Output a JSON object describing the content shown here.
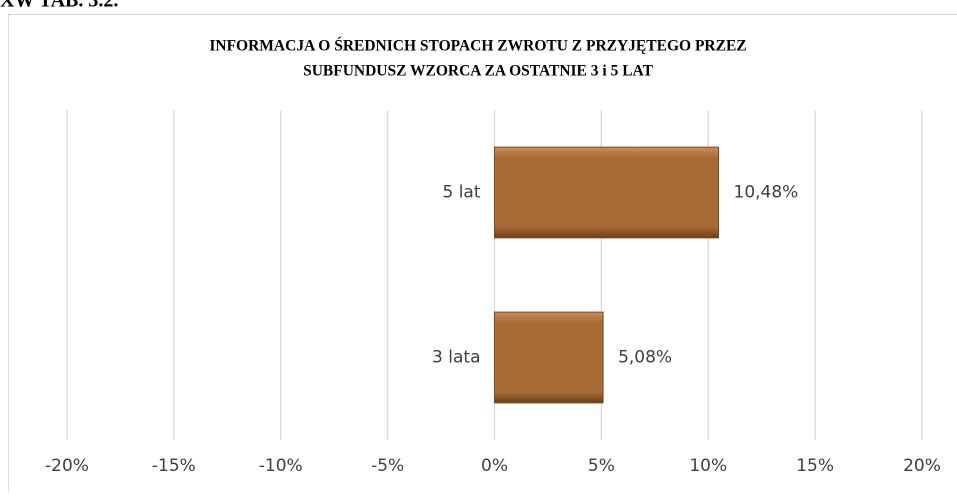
{
  "header": "XW TAB. 3.2.",
  "chart_data": {
    "type": "hbar",
    "title": [
      "INFORMACJA O ŚREDNICH STOPACH ZWROTU Z PRZYJĘTEGO PRZEZ",
      "SUBFUNDUSZ WZORCA ZA OSTATNIE 3 i 5 LAT"
    ],
    "categories": [
      "3 lata",
      "5 lat"
    ],
    "values": [
      5.08,
      10.48
    ],
    "value_labels": [
      "5,08%",
      "10,48%"
    ],
    "color": "#a86b35",
    "xlim": [
      -20,
      20
    ],
    "xticks": [
      {
        "value": -20,
        "label": "-20%"
      },
      {
        "value": -15,
        "label": "-15%"
      },
      {
        "value": -10,
        "label": "-10%"
      },
      {
        "value": -5,
        "label": "-5%"
      },
      {
        "value": 0,
        "label": "0%"
      },
      {
        "value": 5,
        "label": "5%"
      },
      {
        "value": 10,
        "label": "10%"
      },
      {
        "value": 15,
        "label": "15%"
      },
      {
        "value": 20,
        "label": "20%"
      }
    ],
    "grid": true
  }
}
